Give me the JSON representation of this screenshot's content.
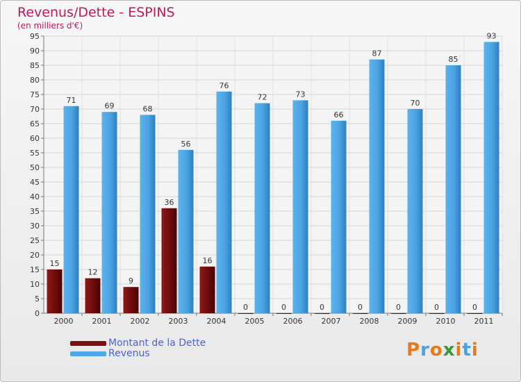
{
  "header": {
    "title": "Revenus/Dette - ESPINS",
    "subtitle": "(en milliers d'€)"
  },
  "logo": {
    "text": "Proxiti",
    "colors": [
      "#e8791a",
      "#4aa3df",
      "#e8791a",
      "#3a9a3a",
      "#e8791a",
      "#4aa3df",
      "#e8791a"
    ]
  },
  "colors": {
    "debt": "#7a1010",
    "revenue": "#4da6e6",
    "axis_text": "#333333",
    "value_text": "#333333"
  },
  "chart_data": {
    "type": "bar",
    "categories": [
      "2000",
      "2001",
      "2002",
      "2003",
      "2004",
      "2005",
      "2006",
      "2007",
      "2008",
      "2009",
      "2010",
      "2011"
    ],
    "series": [
      {
        "name": "Montant de la Dette",
        "values": [
          15,
          12,
          9,
          36,
          16,
          0,
          0,
          0,
          0,
          0,
          0,
          0
        ]
      },
      {
        "name": "Revenus",
        "values": [
          71,
          69,
          68,
          56,
          76,
          72,
          73,
          66,
          87,
          70,
          85,
          93
        ]
      }
    ],
    "title": "Revenus/Dette - ESPINS",
    "ylabel": "(en milliers d'€)",
    "ylim": [
      0,
      95
    ],
    "yticks": [
      0,
      5,
      10,
      15,
      20,
      25,
      30,
      35,
      40,
      45,
      50,
      55,
      60,
      65,
      70,
      75,
      80,
      85,
      90,
      95
    ],
    "grid": true,
    "legend": "bottom-left"
  }
}
